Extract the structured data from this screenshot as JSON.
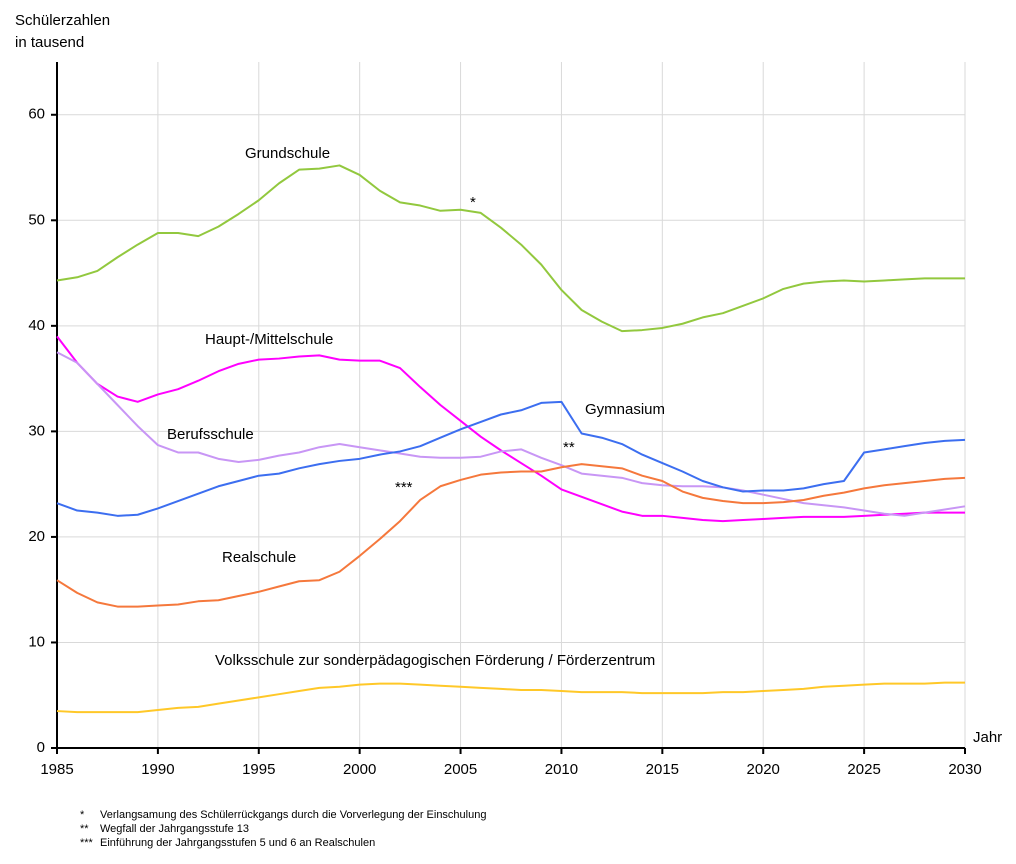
{
  "chart_data": {
    "type": "line",
    "ylabel_lines": [
      "Schülerzahlen",
      "in tausend"
    ],
    "xlabel": "Jahr",
    "x": [
      1985,
      1986,
      1987,
      1988,
      1989,
      1990,
      1991,
      1992,
      1993,
      1994,
      1995,
      1996,
      1997,
      1998,
      1999,
      2000,
      2001,
      2002,
      2003,
      2004,
      2005,
      2006,
      2007,
      2008,
      2009,
      2010,
      2011,
      2012,
      2013,
      2014,
      2015,
      2016,
      2017,
      2018,
      2019,
      2020,
      2021,
      2022,
      2023,
      2024,
      2025,
      2026,
      2027,
      2028,
      2029,
      2030
    ],
    "xlim": [
      1985,
      2030
    ],
    "xticks": [
      1985,
      1990,
      1995,
      2000,
      2005,
      2010,
      2015,
      2020,
      2025,
      2030
    ],
    "ylim": [
      0,
      65
    ],
    "yticks": [
      0,
      10,
      20,
      30,
      40,
      50,
      60
    ],
    "grid": true,
    "series": [
      {
        "name": "Grundschule",
        "color": "#92c83e",
        "values": [
          44.3,
          44.6,
          45.2,
          46.5,
          47.7,
          48.8,
          48.8,
          48.5,
          49.4,
          50.6,
          51.9,
          53.5,
          54.8,
          54.9,
          55.2,
          54.3,
          52.8,
          51.7,
          51.4,
          50.9,
          51.0,
          50.7,
          49.3,
          47.7,
          45.8,
          43.4,
          41.5,
          40.4,
          39.5,
          39.6,
          39.8,
          40.2,
          40.8,
          41.2,
          41.9,
          42.6,
          43.5,
          44.0,
          44.2,
          44.3,
          44.2,
          44.3,
          44.4,
          44.5,
          44.5,
          44.5
        ]
      },
      {
        "name": "Haupt-/Mittelschule",
        "color": "#ff00ff",
        "values": [
          39.0,
          36.5,
          34.5,
          33.3,
          32.8,
          33.5,
          34.0,
          34.8,
          35.7,
          36.4,
          36.8,
          36.9,
          37.1,
          37.2,
          36.8,
          36.7,
          36.7,
          36.0,
          34.2,
          32.5,
          31.0,
          29.5,
          28.2,
          27.0,
          25.8,
          24.5,
          23.8,
          23.1,
          22.4,
          22.0,
          22.0,
          21.8,
          21.6,
          21.5,
          21.6,
          21.7,
          21.8,
          21.9,
          21.9,
          21.9,
          22.0,
          22.1,
          22.2,
          22.3,
          22.3,
          22.3
        ]
      },
      {
        "name": "Berufsschule",
        "color": "#c896f5",
        "values": [
          37.5,
          36.5,
          34.5,
          32.5,
          30.5,
          28.7,
          28.0,
          28.0,
          27.4,
          27.1,
          27.3,
          27.7,
          28.0,
          28.5,
          28.8,
          28.5,
          28.2,
          27.9,
          27.6,
          27.5,
          27.5,
          27.6,
          28.1,
          28.3,
          27.5,
          26.8,
          26.0,
          25.8,
          25.6,
          25.1,
          24.9,
          24.8,
          24.8,
          24.7,
          24.4,
          24.0,
          23.6,
          23.2,
          23.0,
          22.8,
          22.5,
          22.2,
          22.0,
          22.3,
          22.6,
          22.9
        ]
      },
      {
        "name": "Gymnasium",
        "color": "#3c6ef0",
        "values": [
          23.2,
          22.5,
          22.3,
          22.0,
          22.1,
          22.7,
          23.4,
          24.1,
          24.8,
          25.3,
          25.8,
          26.0,
          26.5,
          26.9,
          27.2,
          27.4,
          27.8,
          28.1,
          28.6,
          29.4,
          30.2,
          30.9,
          31.6,
          32.0,
          32.7,
          32.8,
          29.8,
          29.4,
          28.8,
          27.8,
          27.0,
          26.2,
          25.3,
          24.7,
          24.3,
          24.4,
          24.4,
          24.6,
          25.0,
          25.3,
          28.0,
          28.3,
          28.6,
          28.9,
          29.1,
          29.2
        ]
      },
      {
        "name": "Realschule",
        "color": "#f5783c",
        "values": [
          15.9,
          14.7,
          13.8,
          13.4,
          13.4,
          13.5,
          13.6,
          13.9,
          14.0,
          14.4,
          14.8,
          15.3,
          15.8,
          15.9,
          16.7,
          18.2,
          19.8,
          21.5,
          23.5,
          24.8,
          25.4,
          25.9,
          26.1,
          26.2,
          26.2,
          26.6,
          26.9,
          26.7,
          26.5,
          25.8,
          25.3,
          24.3,
          23.7,
          23.4,
          23.2,
          23.2,
          23.3,
          23.5,
          23.9,
          24.2,
          24.6,
          24.9,
          25.1,
          25.3,
          25.5,
          25.6
        ]
      },
      {
        "name": "Volksschule zur sonderpädagogischen Förderung / Förderzentrum",
        "color": "#ffc828",
        "values": [
          3.5,
          3.4,
          3.4,
          3.4,
          3.4,
          3.6,
          3.8,
          3.9,
          4.2,
          4.5,
          4.8,
          5.1,
          5.4,
          5.7,
          5.8,
          6.0,
          6.1,
          6.1,
          6.0,
          5.9,
          5.8,
          5.7,
          5.6,
          5.5,
          5.5,
          5.4,
          5.3,
          5.3,
          5.3,
          5.2,
          5.2,
          5.2,
          5.2,
          5.3,
          5.3,
          5.4,
          5.5,
          5.6,
          5.8,
          5.9,
          6.0,
          6.1,
          6.1,
          6.1,
          6.2,
          6.2
        ]
      }
    ],
    "annotations": [
      "*",
      "**",
      "***"
    ],
    "footnotes": [
      {
        "mark": "*",
        "text": "Verlangsamung des Schülerrückgangs durch die Vorverlegung der Einschulung"
      },
      {
        "mark": "**",
        "text": "Wegfall der Jahrgangsstufe 13"
      },
      {
        "mark": "***",
        "text": "Einführung der Jahrgangsstufen 5 und 6 an Realschulen"
      }
    ]
  }
}
